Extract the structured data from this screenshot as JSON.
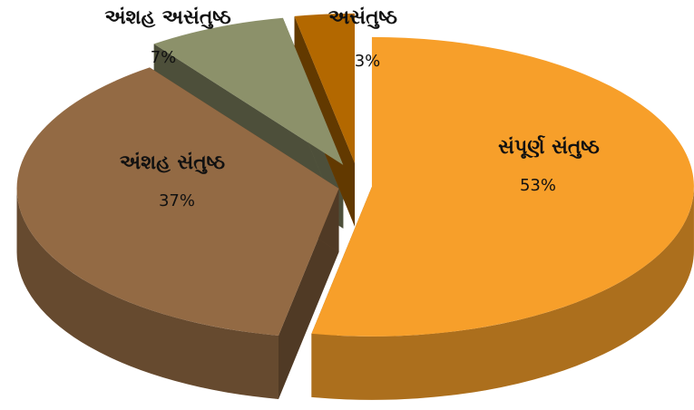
{
  "chart_data": {
    "type": "pie3d",
    "categories": [
      "સંપૂર્ણ સંતુષ્ઠ",
      "અંશહ સંતુષ્ઠ",
      "અંશહ અસંતુષ્ઠ",
      "અસંતુષ્ઠ"
    ],
    "values": [
      53,
      37,
      7,
      3
    ],
    "value_labels": [
      "53%",
      "37%",
      "7%",
      "3%"
    ],
    "colors": [
      "#f79f2a",
      "#936a44",
      "#8c916a",
      "#b36800"
    ]
  }
}
